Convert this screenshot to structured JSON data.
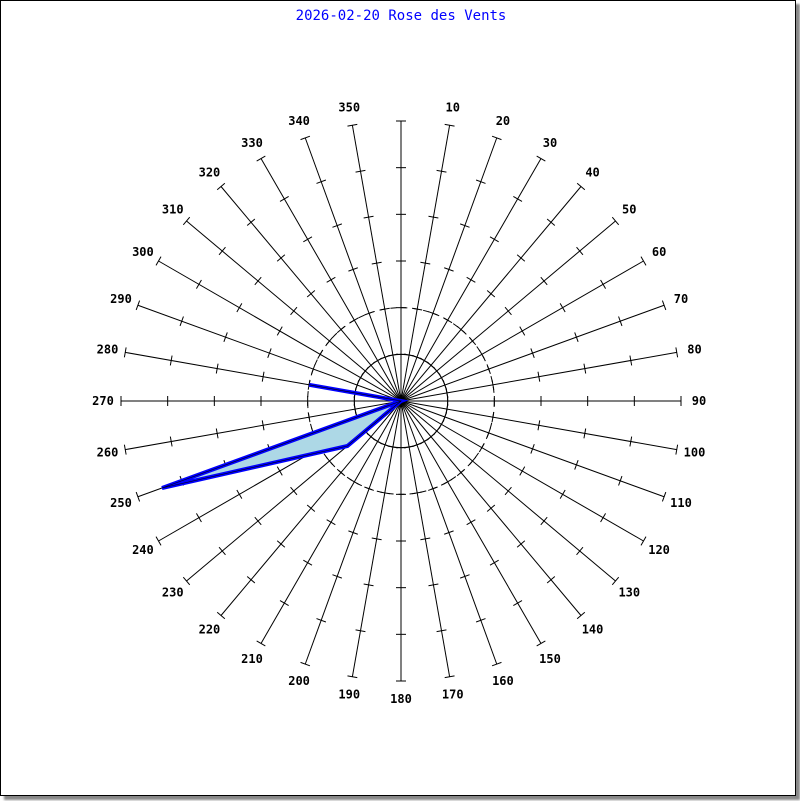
{
  "chart_data": {
    "type": "polar-area",
    "title": "2026-02-20 Rose des Vents",
    "title_color": "#0000ff",
    "fill_color": "#add8e6",
    "stroke_color": "#0000ff",
    "direction_labels": [
      "10",
      "20",
      "30",
      "40",
      "50",
      "60",
      "70",
      "80",
      "90",
      "100",
      "110",
      "120",
      "130",
      "140",
      "150",
      "160",
      "170",
      "180",
      "190",
      "200",
      "210",
      "220",
      "230",
      "240",
      "250",
      "260",
      "270",
      "280",
      "290",
      "300",
      "310",
      "320",
      "330",
      "340",
      "350"
    ],
    "radial_max": 6,
    "radial_ticks": 6,
    "rings": [
      {
        "r": 1,
        "style": "solid"
      },
      {
        "r": 2,
        "style": "dashed"
      }
    ],
    "points": [
      {
        "direction": 0,
        "value": 0
      },
      {
        "direction": 280,
        "value": 2.0
      },
      {
        "direction": 0,
        "value": 0
      },
      {
        "direction": 250,
        "value": 5.45
      },
      {
        "direction": 230,
        "value": 1.5
      },
      {
        "direction": 0,
        "value": 0
      }
    ]
  }
}
